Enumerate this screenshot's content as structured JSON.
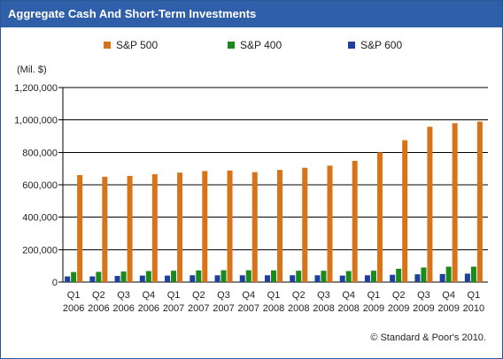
{
  "title": "Aggregate Cash And Short-Term Investments",
  "footer": "© Standard & Poor's 2010.",
  "chart_data": {
    "type": "bar",
    "ylabel": "(Mil. $)",
    "ylim": [
      0,
      1200000
    ],
    "yticks": [
      0,
      200000,
      400000,
      600000,
      800000,
      1000000,
      1200000
    ],
    "ytick_labels": [
      "0",
      "200,000",
      "400,000",
      "600,000",
      "800,000",
      "1,000,000",
      "1,200,000"
    ],
    "grid": true,
    "legend_position": "top",
    "categories": [
      {
        "q": "Q1",
        "y": "2006"
      },
      {
        "q": "Q2",
        "y": "2006"
      },
      {
        "q": "Q3",
        "y": "2006"
      },
      {
        "q": "Q4",
        "y": "2006"
      },
      {
        "q": "Q1",
        "y": "2007"
      },
      {
        "q": "Q2",
        "y": "2007"
      },
      {
        "q": "Q3",
        "y": "2007"
      },
      {
        "q": "Q4",
        "y": "2007"
      },
      {
        "q": "Q1",
        "y": "2008"
      },
      {
        "q": "Q2",
        "y": "2008"
      },
      {
        "q": "Q3",
        "y": "2008"
      },
      {
        "q": "Q4",
        "y": "2008"
      },
      {
        "q": "Q1",
        "y": "2009"
      },
      {
        "q": "Q2",
        "y": "2009"
      },
      {
        "q": "Q3",
        "y": "2009"
      },
      {
        "q": "Q4",
        "y": "2009"
      },
      {
        "q": "Q1",
        "y": "2010"
      }
    ],
    "series": [
      {
        "name": "S&P 600",
        "color": "#1f3fa0",
        "values": [
          35000,
          35000,
          38000,
          40000,
          40000,
          42000,
          42000,
          42000,
          42000,
          42000,
          42000,
          40000,
          42000,
          45000,
          48000,
          50000,
          52000
        ]
      },
      {
        "name": "S&P 400",
        "color": "#1a8a1a",
        "values": [
          62000,
          63000,
          65000,
          68000,
          70000,
          72000,
          73000,
          73000,
          72000,
          70000,
          70000,
          68000,
          70000,
          82000,
          90000,
          95000,
          95000
        ]
      },
      {
        "name": "S&P 500",
        "color": "#d9731a",
        "values": [
          660000,
          650000,
          655000,
          665000,
          675000,
          685000,
          688000,
          678000,
          692000,
          705000,
          718000,
          748000,
          800000,
          875000,
          958000,
          980000,
          990000
        ]
      }
    ]
  }
}
